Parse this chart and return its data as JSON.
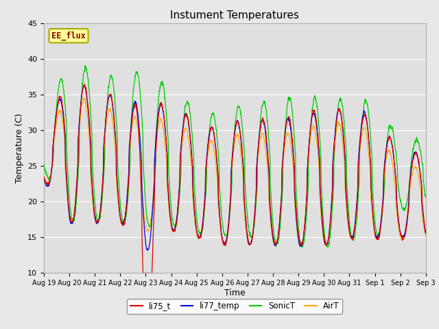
{
  "title": "Instument Temperatures",
  "xlabel": "Time",
  "ylabel": "Temperature (C)",
  "ylim": [
    10,
    45
  ],
  "n_days": 15,
  "x_tick_labels": [
    "Aug 19",
    "Aug 20",
    "Aug 21",
    "Aug 22",
    "Aug 23",
    "Aug 24",
    "Aug 25",
    "Aug 26",
    "Aug 27",
    "Aug 28",
    "Aug 29",
    "Aug 30",
    "Aug 31",
    "Sep 1",
    "Sep 2",
    "Sep 3"
  ],
  "background_color": "#e8e8e8",
  "plot_bg_color": "#e0e0e0",
  "fig_bg_color": "#e8e8e8",
  "series_colors": {
    "li75_t": "#dd0000",
    "li77_temp": "#0000dd",
    "SonicT": "#00cc00",
    "AirT": "#ffaa00"
  },
  "legend_labels": [
    "li75_t",
    "li77_temp",
    "SonicT",
    "AirT"
  ],
  "legend_colors": [
    "#dd0000",
    "#0000dd",
    "#00cc00",
    "#ffaa00"
  ],
  "annotation_text": "EE_flux",
  "yticks": [
    10,
    15,
    20,
    25,
    30,
    35,
    40,
    45
  ]
}
